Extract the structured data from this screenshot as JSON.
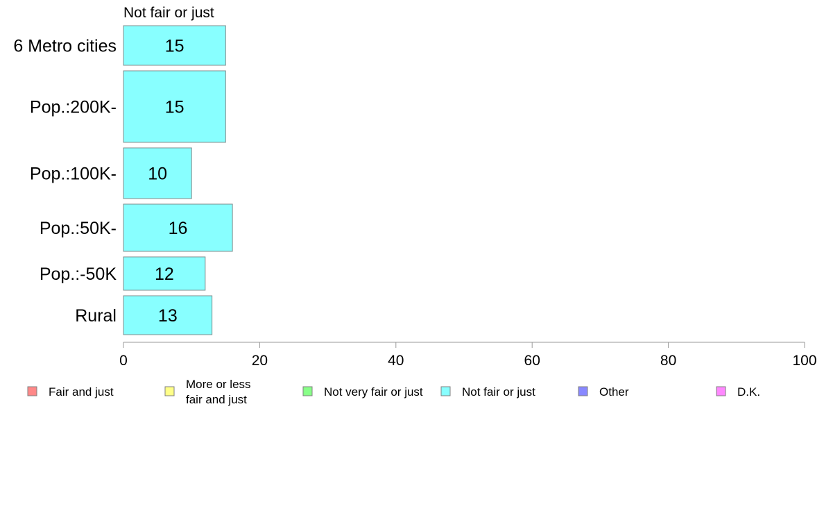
{
  "chart_data": {
    "type": "bar",
    "orientation": "horizontal",
    "title": "Not fair or just",
    "categories": [
      "6 Metro cities",
      "Pop.:200K-",
      "Pop.:100K-",
      "Pop.:50K-",
      "Pop.:-50K",
      "Rural"
    ],
    "values": [
      15,
      15,
      10,
      16,
      12,
      13
    ],
    "value_labels": [
      "15",
      "15",
      "10",
      "16",
      "12",
      "13"
    ],
    "xlim": [
      0,
      100
    ],
    "xticks": [
      0,
      20,
      40,
      60,
      80,
      100
    ],
    "xlabel": "",
    "ylabel": "",
    "grid": false,
    "bar_color": "#88ffff",
    "legend": {
      "placement": "bottom",
      "entries": [
        {
          "label": [
            "Fair and just"
          ],
          "color": "#ff8888"
        },
        {
          "label": [
            "More or less",
            "fair and just"
          ],
          "color": "#ffff88"
        },
        {
          "label": [
            "Not very fair or just"
          ],
          "color": "#88ff88"
        },
        {
          "label": [
            "Not fair or just"
          ],
          "color": "#88ffff"
        },
        {
          "label": [
            "Other"
          ],
          "color": "#8888ff"
        },
        {
          "label": [
            "D.K."
          ],
          "color": "#ff88ff"
        }
      ]
    }
  }
}
